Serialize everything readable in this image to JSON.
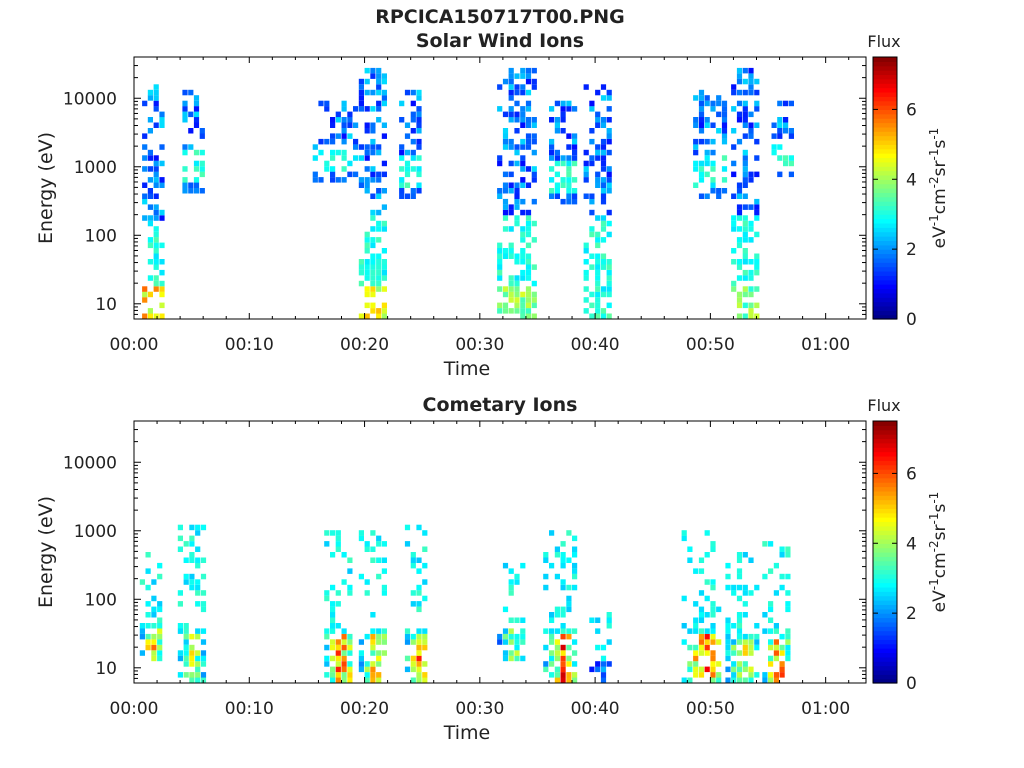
{
  "figure": {
    "title": "RPCICA150717T00.PNG"
  },
  "chart_data": [
    {
      "type": "heatmap",
      "title": "Solar Wind Ions",
      "xlabel": "Time",
      "ylabel": "Energy (eV)",
      "x_ticks": [
        "00:00",
        "00:10",
        "00:20",
        "00:30",
        "00:40",
        "00:50",
        "01:00"
      ],
      "x_range_minutes": [
        0,
        63.5
      ],
      "y_scale": "log",
      "y_ticks": [
        "10",
        "100",
        "1000",
        "10000"
      ],
      "y_range": [
        6,
        40000
      ],
      "colorbar": {
        "title": "Flux",
        "label": "eV-1cm-2sr-1s-1",
        "ticks": [
          "0",
          "2",
          "4",
          "6"
        ],
        "range": [
          0,
          7.5
        ],
        "colormap": "jet"
      },
      "bursts": [
        {
          "t_start": 0.7,
          "t_end": 2.5,
          "e_min": 6,
          "e_max": 15000,
          "peak_flux": 5.8
        },
        {
          "t_start": 4.2,
          "t_end": 5.8,
          "e_min": 350,
          "e_max": 13000,
          "peak_flux": 2.2
        },
        {
          "t_start": 15.5,
          "t_end": 19.5,
          "e_min": 500,
          "e_max": 9000,
          "peak_flux": 2.0
        },
        {
          "t_start": 19.5,
          "t_end": 22.0,
          "e_min": 6,
          "e_max": 25000,
          "peak_flux": 5.2
        },
        {
          "t_start": 23.0,
          "t_end": 25.0,
          "e_min": 300,
          "e_max": 13000,
          "peak_flux": 1.8
        },
        {
          "t_start": 31.5,
          "t_end": 35.0,
          "e_min": 6,
          "e_max": 24000,
          "peak_flux": 4.5
        },
        {
          "t_start": 36.0,
          "t_end": 38.5,
          "e_min": 250,
          "e_max": 9000,
          "peak_flux": 2.0
        },
        {
          "t_start": 39.0,
          "t_end": 41.5,
          "e_min": 6,
          "e_max": 15000,
          "peak_flux": 3.6
        },
        {
          "t_start": 48.5,
          "t_end": 51.5,
          "e_min": 300,
          "e_max": 13000,
          "peak_flux": 2.0
        },
        {
          "t_start": 51.8,
          "t_end": 54.0,
          "e_min": 6,
          "e_max": 24000,
          "peak_flux": 4.3
        },
        {
          "t_start": 55.3,
          "t_end": 57.0,
          "e_min": 600,
          "e_max": 9000,
          "peak_flux": 1.8
        }
      ]
    },
    {
      "type": "heatmap",
      "title": "Cometary Ions",
      "xlabel": "Time",
      "ylabel": "Energy (eV)",
      "x_ticks": [
        "00:00",
        "00:10",
        "00:20",
        "00:30",
        "00:40",
        "00:50",
        "01:00"
      ],
      "x_range_minutes": [
        0,
        63.5
      ],
      "y_scale": "log",
      "y_ticks": [
        "10",
        "100",
        "1000",
        "10000"
      ],
      "y_range": [
        6,
        40000
      ],
      "colorbar": {
        "title": "Flux",
        "label": "eV-1cm-2sr-1s-1",
        "ticks": [
          "0",
          "2",
          "4",
          "6"
        ],
        "range": [
          0,
          7.5
        ],
        "colormap": "jet"
      },
      "bursts": [
        {
          "t_start": 0.5,
          "t_end": 2.3,
          "e_min": 12,
          "e_max": 500,
          "peak_flux": 6.8
        },
        {
          "t_start": 3.8,
          "t_end": 6.0,
          "e_min": 6,
          "e_max": 1100,
          "peak_flux": 5.5
        },
        {
          "t_start": 16.5,
          "t_end": 19.0,
          "e_min": 6,
          "e_max": 900,
          "peak_flux": 7.2
        },
        {
          "t_start": 19.5,
          "t_end": 22.0,
          "e_min": 6,
          "e_max": 900,
          "peak_flux": 6.2
        },
        {
          "t_start": 23.5,
          "t_end": 25.5,
          "e_min": 6,
          "e_max": 1100,
          "peak_flux": 7.0
        },
        {
          "t_start": 31.5,
          "t_end": 34.0,
          "e_min": 12,
          "e_max": 300,
          "peak_flux": 5.3
        },
        {
          "t_start": 35.5,
          "t_end": 38.5,
          "e_min": 6,
          "e_max": 900,
          "peak_flux": 7.0
        },
        {
          "t_start": 39.5,
          "t_end": 41.5,
          "e_min": 6,
          "e_max": 60,
          "peak_flux": 2.4
        },
        {
          "t_start": 47.5,
          "t_end": 51.0,
          "e_min": 6,
          "e_max": 1100,
          "peak_flux": 7.3
        },
        {
          "t_start": 51.3,
          "t_end": 54.0,
          "e_min": 6,
          "e_max": 500,
          "peak_flux": 6.0
        },
        {
          "t_start": 54.5,
          "t_end": 57.0,
          "e_min": 6,
          "e_max": 700,
          "peak_flux": 7.0
        }
      ]
    }
  ]
}
